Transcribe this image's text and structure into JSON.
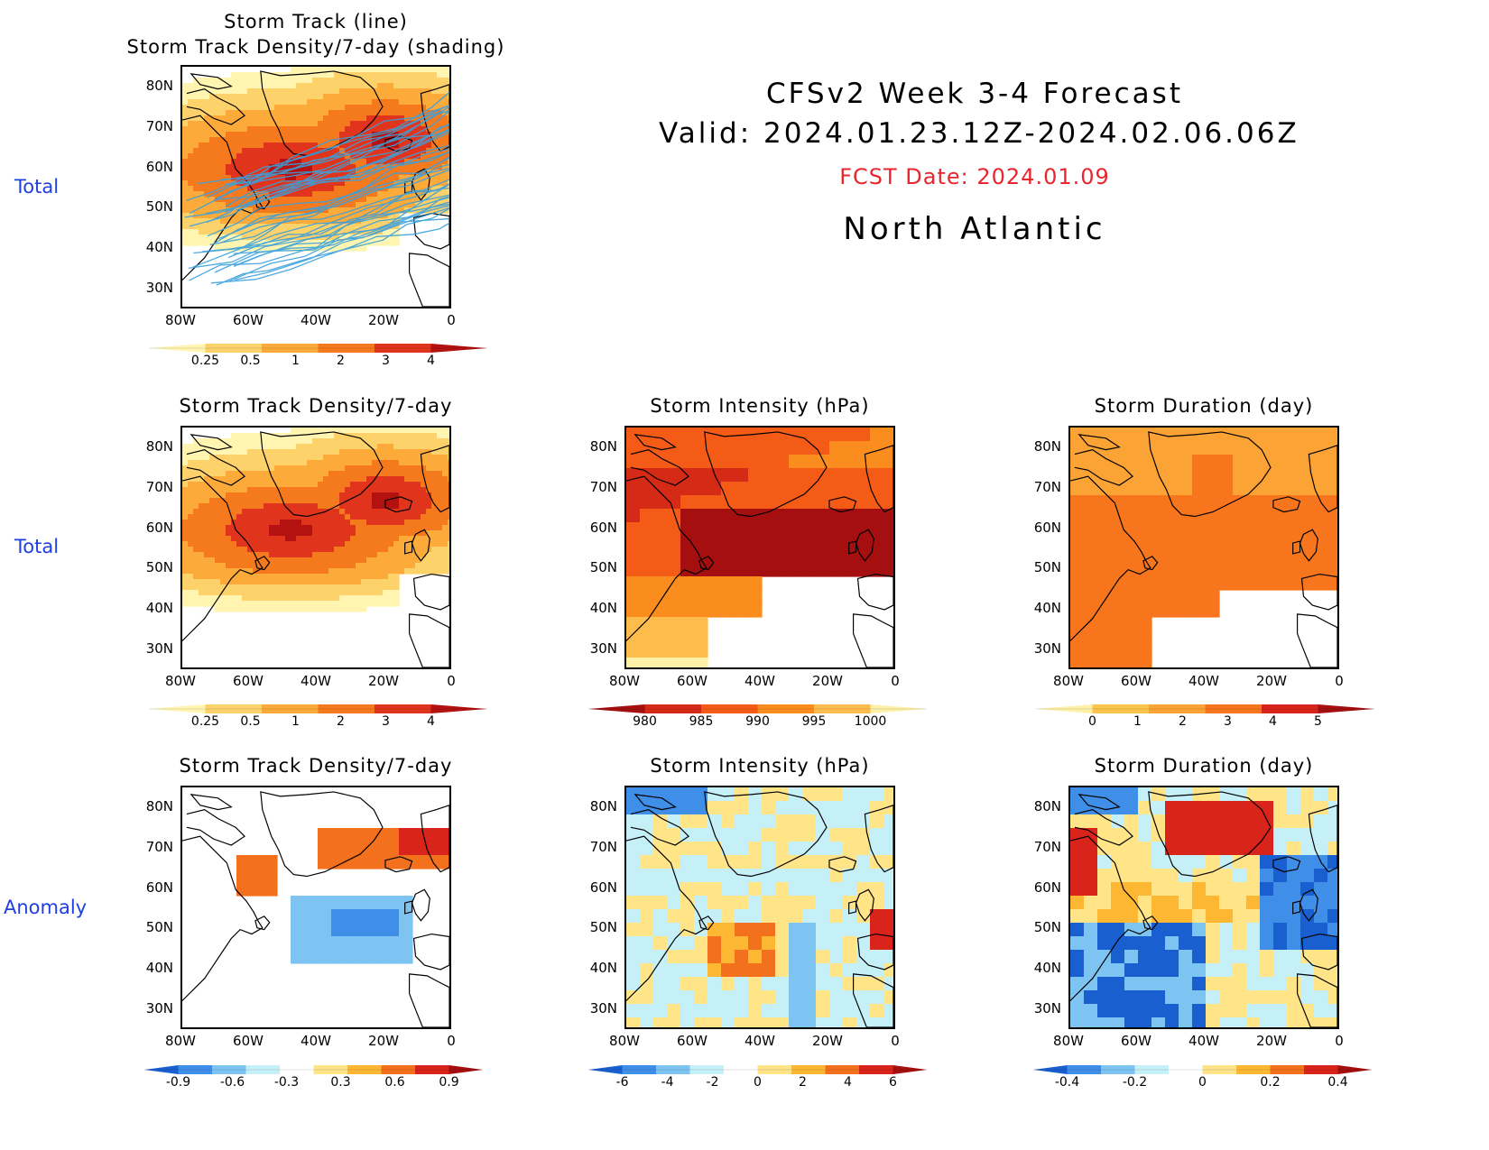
{
  "header": {
    "line1": "CFSv2 Week 3-4 Forecast",
    "line2": "Valid: 2024.01.23.12Z-2024.02.06.06Z",
    "fcst_date": "FCST Date: 2024.01.09",
    "region": "North Atlantic"
  },
  "row_labels": [
    "Total",
    "Total",
    "Anomaly"
  ],
  "axes": {
    "lat_ticks": [
      "80N",
      "70N",
      "60N",
      "50N",
      "40N",
      "30N"
    ],
    "lon_ticks": [
      "80W",
      "60W",
      "40W",
      "20W",
      "0"
    ]
  },
  "colors": {
    "density": [
      "#fff5b0",
      "#fdd26a",
      "#fcaa3a",
      "#f57a1e",
      "#e0351c",
      "#b31210"
    ],
    "intensity": [
      "#a50f0f",
      "#d42a16",
      "#f45b16",
      "#fb8c1e",
      "#fdbc4c",
      "#fff0a8"
    ],
    "duration": [
      "#fff0a8",
      "#fdc44e",
      "#fca336",
      "#f7761d",
      "#d8241a",
      "#a50f0f"
    ],
    "anomaly": [
      "#1a5fd0",
      "#3f8ee8",
      "#7ec4f2",
      "#c6f0f7",
      "#ffffff",
      "#ffe488",
      "#fdb733",
      "#f3701d",
      "#d8241a",
      "#a50f0f"
    ],
    "track_line": "#3aa0dc",
    "row_label": "#1f3fe0",
    "fcst_date": "#e8262d"
  },
  "chart_data": [
    {
      "id": "track-total",
      "type": "heatmap",
      "title": "Storm Track (line)\nStorm Track Density/7-day (shading)",
      "colorbar": {
        "labels": [
          "0.25",
          "0.5",
          "1",
          "2",
          "3",
          "4"
        ],
        "palette": "density"
      }
    },
    {
      "id": "density-total",
      "type": "heatmap",
      "title": "Storm Track Density/7-day",
      "colorbar": {
        "labels": [
          "0.25",
          "0.5",
          "1",
          "2",
          "3",
          "4"
        ],
        "palette": "density"
      }
    },
    {
      "id": "intensity-total",
      "type": "heatmap",
      "title": "Storm Intensity (hPa)",
      "colorbar": {
        "labels": [
          "980",
          "985",
          "990",
          "995",
          "1000"
        ],
        "palette": "intensity"
      }
    },
    {
      "id": "duration-total",
      "type": "heatmap",
      "title": "Storm Duration (day)",
      "colorbar": {
        "labels": [
          "0",
          "1",
          "2",
          "3",
          "4",
          "5"
        ],
        "palette": "duration"
      }
    },
    {
      "id": "density-anom",
      "type": "heatmap",
      "title": "Storm Track Density/7-day",
      "colorbar": {
        "labels": [
          "-0.9",
          "-0.6",
          "-0.3",
          "0.3",
          "0.6",
          "0.9"
        ],
        "palette": "anomaly"
      }
    },
    {
      "id": "intensity-anom",
      "type": "heatmap",
      "title": "Storm Intensity (hPa)",
      "colorbar": {
        "labels": [
          "-6",
          "-4",
          "-2",
          "0",
          "2",
          "4",
          "6"
        ],
        "palette": "anomaly"
      }
    },
    {
      "id": "duration-anom",
      "type": "heatmap",
      "title": "Storm Duration (day)",
      "colorbar": {
        "labels": [
          "-0.4",
          "-0.2",
          "0",
          "0.2",
          "0.4"
        ],
        "palette": "anomaly"
      }
    }
  ]
}
